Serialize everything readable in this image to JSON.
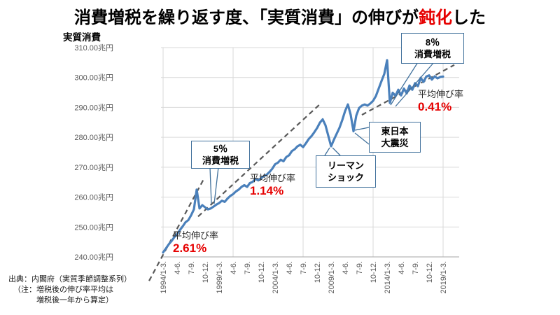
{
  "title": {
    "prefix": "消費増税を繰り返す度、「実質消費」の伸びが",
    "highlight": "鈍化",
    "suffix": "した"
  },
  "source_note": {
    "line1": "出典：内閣府（実質季節調整系列）",
    "line2": "（注：増税後の伸び率平均は",
    "line3": "増税後一年から算定）"
  },
  "colors": {
    "series_line": "#4a80bb",
    "trend_line": "#595959",
    "accent_red": "#e60000",
    "callout_border": "#41719c",
    "gridline": "#d9d9d9",
    "axis_text": "#595959"
  },
  "chart_data": {
    "type": "line",
    "ylabel": "実質消費",
    "unit": "兆円",
    "ylim": [
      240,
      310
    ],
    "grid": true,
    "legend": "none",
    "y_ticks": [
      {
        "v": 310,
        "label": "310.00兆円"
      },
      {
        "v": 300,
        "label": "300.00兆円"
      },
      {
        "v": 290,
        "label": "290.00兆円"
      },
      {
        "v": 280,
        "label": "280.00兆円"
      },
      {
        "v": 270,
        "label": "270.00兆円"
      },
      {
        "v": 260,
        "label": "260.00兆円"
      },
      {
        "v": 250,
        "label": "250.00兆円"
      },
      {
        "v": 240,
        "label": "240.00兆円"
      }
    ],
    "x_period_start": "1994Q1",
    "x_period_end": "2019Q1",
    "frequency": "quarterly",
    "x_tick_interval_quarters": 5,
    "x_tick_labels": [
      "1994/1-3.",
      "4-6.",
      "7-9.",
      "10-12.",
      "1999/1-3.",
      "4-6.",
      "7-9.",
      "10-12.",
      "2004/1-3.",
      "4-6.",
      "7-9.",
      "10-12.",
      "2009/1-3.",
      "4-6.",
      "7-9.",
      "10-12.",
      "2014/1-3.",
      "4-6.",
      "7-9.",
      "10-12.",
      "2019/1-3."
    ],
    "values": [
      241.5,
      242.8,
      244.2,
      245.3,
      246.6,
      247.6,
      249.0,
      250.2,
      251.6,
      252.3,
      253.9,
      255.9,
      262.5,
      256.2,
      257.3,
      256.6,
      255.9,
      256.2,
      256.8,
      257.5,
      258.0,
      258.8,
      258.4,
      259.5,
      260.4,
      261.0,
      261.9,
      262.5,
      263.4,
      264.0,
      263.4,
      264.7,
      265.1,
      266.1,
      265.6,
      266.4,
      267.0,
      267.5,
      268.4,
      269.5,
      271.0,
      271.5,
      272.5,
      272.0,
      273.4,
      274.0,
      275.4,
      276.0,
      277.0,
      277.5,
      276.7,
      278.0,
      279.4,
      280.4,
      281.7,
      283.1,
      284.9,
      286.0,
      284.0,
      280.5,
      277.0,
      279.2,
      281.2,
      283.2,
      285.8,
      288.8,
      291.0,
      287.5,
      282.0,
      287.3,
      289.8,
      290.6,
      291.0,
      290.6,
      291.3,
      292.2,
      293.8,
      296.3,
      298.8,
      301.2,
      305.8,
      291.5,
      294.9,
      293.9,
      295.9,
      294.0,
      296.3,
      294.7,
      297.3,
      295.9,
      298.1,
      297.1,
      299.9,
      298.5,
      300.3,
      300.7,
      299.3,
      300.4,
      299.7,
      300.2,
      300.3
    ],
    "trendlines": [
      {
        "rate": "2.61%",
        "era": "before 1997 tax hike",
        "q_span": [
          -5,
          14.5
        ],
        "v_span": [
          232.0,
          266.0
        ]
      },
      {
        "rate": "1.14%",
        "era": "1997 to 2008",
        "q_span": [
          12.5,
          56.5
        ],
        "v_span": [
          253.5,
          291.5
        ]
      },
      {
        "rate": "0.41%",
        "era": "after 2014 tax hike",
        "q_span": [
          71,
          104
        ],
        "v_span": [
          287.5,
          304.2
        ]
      }
    ],
    "growth_labels": [
      {
        "label": "平均伸び率",
        "value": "2.61%"
      },
      {
        "label": "平均伸び率",
        "value": "1.14%"
      },
      {
        "label": "平均伸び率",
        "value": "0.41%"
      }
    ],
    "callouts": [
      {
        "id": "tax5",
        "lines": [
          "5％",
          "消費増税"
        ],
        "anchor_period": "1997Q2"
      },
      {
        "id": "tax8",
        "lines": [
          "8％",
          "消費増税"
        ],
        "anchor_period": "2014Q2"
      },
      {
        "id": "lehman",
        "lines": [
          "リーマン",
          "ショック"
        ],
        "anchor_period": "2009Q1"
      },
      {
        "id": "quake",
        "lines": [
          "東日本",
          "大震災"
        ],
        "anchor_period": "2011Q1"
      }
    ]
  }
}
